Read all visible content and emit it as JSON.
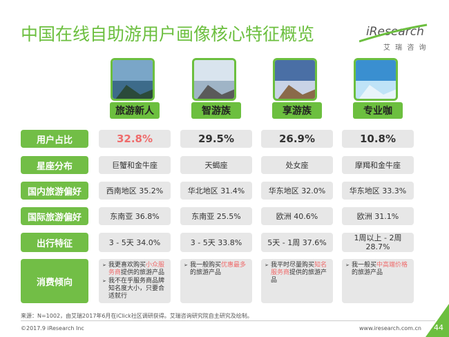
{
  "header": {
    "title": "中国在线自助游用户画像核心特征概览",
    "brand": "iResearch",
    "brand_sub": "艾 瑞 咨 询"
  },
  "columns": [
    "旅游新人",
    "智游族",
    "享游族",
    "专业咖"
  ],
  "rows": [
    {
      "label": "用户占比",
      "cells": [
        "32.8%",
        "29.5%",
        "26.9%",
        "10.8%"
      ]
    },
    {
      "label": "星座分布",
      "cells": [
        "巨蟹和金牛座",
        "天蝎座",
        "处女座",
        "摩羯和金牛座"
      ]
    },
    {
      "label": "国内旅游偏好",
      "cells": [
        "西南地区 35.2%",
        "华北地区 31.4%",
        "华东地区 32.0%",
        "华东地区 33.3%"
      ]
    },
    {
      "label": "国际旅游偏好",
      "cells": [
        "东南亚 36.8%",
        "东南亚 25.5%",
        "欧洲 40.6%",
        "欧洲 31.1%"
      ]
    },
    {
      "label": "出行特征",
      "cells": [
        "3 - 5天 34.0%",
        "3 - 5天 33.8%",
        "5天 - 1周 37.6%",
        "1周以上 - 2周 28.7%"
      ]
    }
  ],
  "consumption": {
    "label": "消费倾向",
    "cells": [
      [
        {
          "before": "我更喜欢购买",
          "highlight": "小众服务商",
          "after": "提供的旅游产品"
        },
        {
          "before": "我不在乎服务商品牌知名度大小，只要合适就行"
        }
      ],
      [
        {
          "before": "我一般购买",
          "highlight": "优惠最多",
          "after": "的旅游产品"
        }
      ],
      [
        {
          "before": "我平时尽量购买",
          "highlight": "知名服务商",
          "after": "提供的旅游产品"
        }
      ],
      [
        {
          "before": "我一般买",
          "highlight": "中高端价格",
          "after": "的旅游产品"
        }
      ]
    ]
  },
  "footer": {
    "source": "来源：N=1002，由艾瑞2017年6月在iClick社区调研获得。艾瑞咨询研究院自主研究及绘制。",
    "copyright": "©2017.9 iResearch Inc",
    "url": "www.iresearch.com.cn",
    "page": "44"
  }
}
